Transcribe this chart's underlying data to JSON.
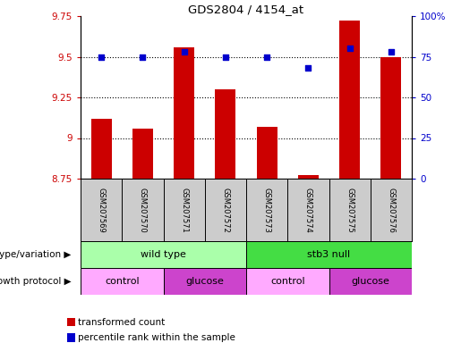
{
  "title": "GDS2804 / 4154_at",
  "samples": [
    "GSM207569",
    "GSM207570",
    "GSM207571",
    "GSM207572",
    "GSM207573",
    "GSM207574",
    "GSM207575",
    "GSM207576"
  ],
  "transformed_count": [
    9.12,
    9.06,
    9.56,
    9.3,
    9.07,
    8.77,
    9.72,
    9.5
  ],
  "percentile_rank": [
    75,
    75,
    78,
    75,
    75,
    68,
    80,
    78
  ],
  "ylim_left": [
    8.75,
    9.75
  ],
  "ylim_right": [
    0,
    100
  ],
  "yticks_left": [
    8.75,
    9.0,
    9.25,
    9.5,
    9.75
  ],
  "yticks_right": [
    0,
    25,
    50,
    75,
    100
  ],
  "ytick_labels_left": [
    "8.75",
    "9",
    "9.25",
    "9.5",
    "9.75"
  ],
  "ytick_labels_right": [
    "0",
    "25",
    "50",
    "75",
    "100%"
  ],
  "hlines": [
    9.0,
    9.25,
    9.5
  ],
  "bar_color": "#cc0000",
  "dot_color": "#0000cc",
  "bar_width": 0.5,
  "genotype_groups": [
    {
      "label": "wild type",
      "start": 0,
      "end": 4,
      "color": "#aaffaa"
    },
    {
      "label": "stb3 null",
      "start": 4,
      "end": 8,
      "color": "#44dd44"
    }
  ],
  "growth_groups": [
    {
      "label": "control",
      "start": 0,
      "end": 2,
      "color": "#ffaaff"
    },
    {
      "label": "glucose",
      "start": 2,
      "end": 4,
      "color": "#cc44cc"
    },
    {
      "label": "control",
      "start": 4,
      "end": 6,
      "color": "#ffaaff"
    },
    {
      "label": "glucose",
      "start": 6,
      "end": 8,
      "color": "#cc44cc"
    }
  ],
  "legend_items": [
    {
      "label": "transformed count",
      "color": "#cc0000"
    },
    {
      "label": "percentile rank within the sample",
      "color": "#0000cc"
    }
  ],
  "label_genotype": "genotype/variation",
  "label_growth": "growth protocol",
  "tick_color_left": "#cc0000",
  "tick_color_right": "#0000cc",
  "sample_bg": "#cccccc"
}
